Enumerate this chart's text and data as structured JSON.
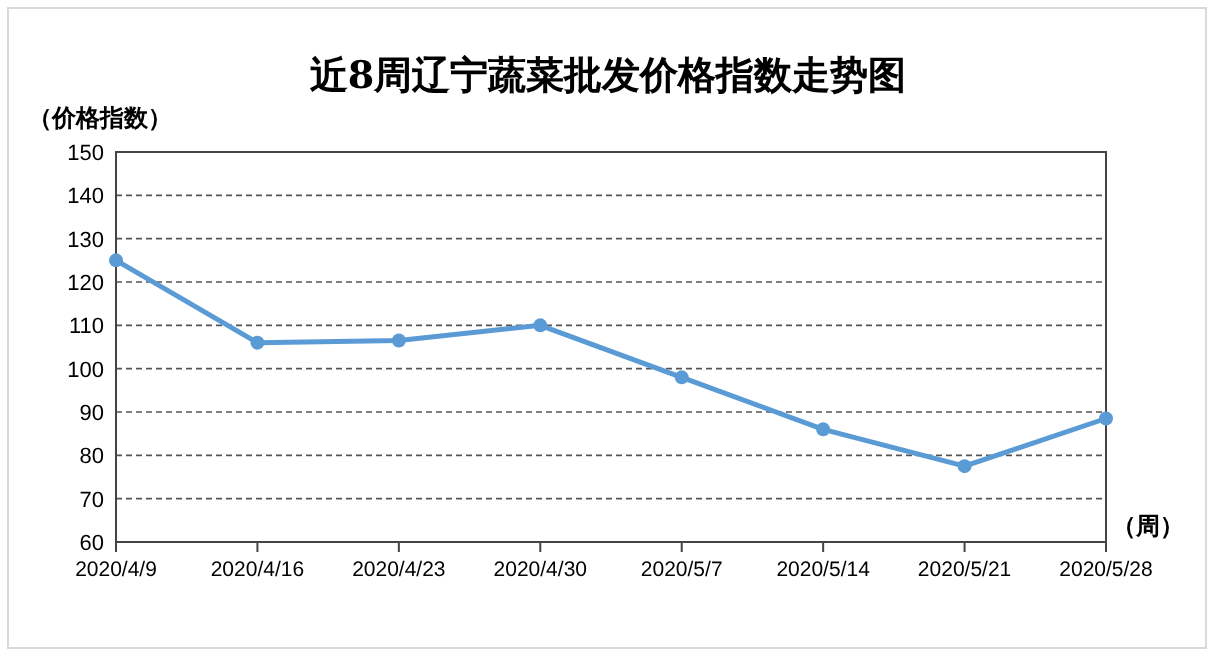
{
  "chart_data": {
    "type": "line",
    "title": "近8周辽宁蔬菜批发价格指数走势图",
    "ylabel": "（价格指数）",
    "xlabel": "（周）",
    "categories": [
      "2020/4/9",
      "2020/4/16",
      "2020/4/23",
      "2020/4/30",
      "2020/5/7",
      "2020/5/14",
      "2020/5/21",
      "2020/5/28"
    ],
    "series": [
      {
        "color": "#5b9bd5",
        "values": [
          125,
          106,
          106.5,
          110,
          98,
          86,
          77.5,
          88.5
        ]
      }
    ],
    "ylim": [
      60,
      150
    ],
    "yticks": [
      60,
      70,
      80,
      90,
      100,
      110,
      120,
      130,
      140,
      150
    ],
    "grid": "y",
    "marker": "circle",
    "line_style": "solid"
  }
}
